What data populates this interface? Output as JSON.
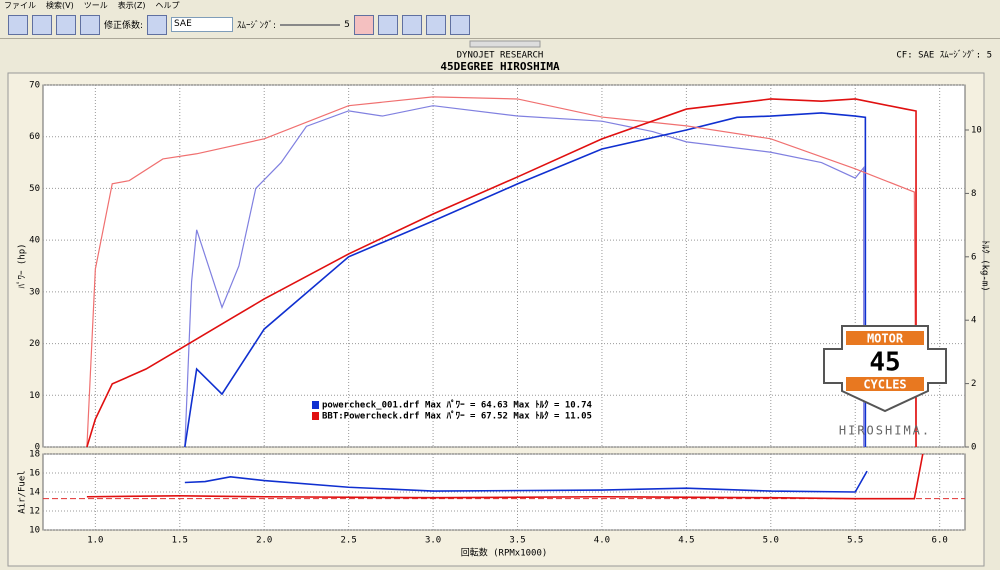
{
  "menu": [
    "ファイル",
    "検索(V)",
    "ツール",
    "表示(Z)",
    "ヘルプ"
  ],
  "toolbar": {
    "label": "修正係数:",
    "select": "SAE",
    "smoothing_label": "ｽﾑｰｼﾞﾝｸﾞ:",
    "smoothing_value": 5
  },
  "header": {
    "top": "DYNOJET  RESEARCH",
    "title": "45DEGREE HIROSHIMA",
    "cf": "CF: SAE  ｽﾑｰｼﾞﾝｸﾞ: 5"
  },
  "logo": {
    "top": "MOTOR",
    "number": "45",
    "bottom": "CYCLES",
    "city": "HIROSHIMA."
  },
  "chart_data": [
    {
      "type": "line",
      "ylabel": "ﾊﾟﾜｰ (hp)",
      "y2label": "ﾄﾙｸ (kg-m)",
      "grid": true,
      "xlim": [
        0.69,
        6.15
      ],
      "xticks": [
        {
          "value": 1,
          "label": "1.0"
        },
        1.5,
        {
          "value": 2,
          "label": "2.0"
        },
        2.5,
        {
          "value": 3,
          "label": "3.0"
        },
        3.5,
        {
          "value": 4,
          "label": "4.0"
        },
        4.5,
        {
          "value": 5,
          "label": "5.0"
        },
        5.5,
        {
          "value": 6,
          "label": "6.0"
        }
      ],
      "ylim": [
        0,
        70
      ],
      "yticks": [
        0,
        10,
        20,
        30,
        40,
        50,
        60,
        70
      ],
      "y2lim": [
        0,
        11.42
      ],
      "y2ticks": [
        0,
        2,
        4,
        6,
        8,
        10
      ],
      "legend": [
        {
          "label": "powercheck_001.drf Max ﾊﾟﾜｰ = 64.63  Max ﾄﾙｸ = 10.74",
          "color": "#1030d0"
        },
        {
          "label": "BBT:Powercheck.drf Max ﾊﾟﾜｰ = 67.52  Max ﾄﾙｸ = 11.05",
          "color": "#e01010"
        }
      ],
      "series": [
        {
          "color": "#8080e0",
          "width": 1.2,
          "x": [
            1.53,
            1.57,
            1.6,
            1.65,
            1.75,
            1.85,
            1.95,
            2.1,
            2.25,
            2.5,
            2.7,
            3.0,
            3.5,
            4.0,
            4.3,
            4.5,
            5.0,
            5.3,
            5.5,
            5.55,
            5.55
          ],
          "values": [
            0,
            32,
            42,
            37,
            27,
            35,
            50,
            55,
            62,
            65,
            64,
            66,
            64,
            63,
            61,
            59,
            57,
            55,
            52,
            54,
            0
          ]
        },
        {
          "color": "#1030d0",
          "width": 1.6,
          "axis": "y2",
          "x": [
            1.53,
            1.6,
            1.75,
            2.0,
            2.5,
            3.0,
            3.5,
            4.0,
            4.5,
            4.8,
            5.0,
            5.3,
            5.5,
            5.56,
            5.56
          ],
          "values": [
            0,
            2.46,
            1.67,
            3.72,
            6.0,
            7.13,
            8.3,
            9.4,
            10.0,
            10.4,
            10.44,
            10.54,
            10.44,
            10.4,
            0
          ]
        },
        {
          "color": "#f07070",
          "width": 1.2,
          "x": [
            0.95,
            1.0,
            1.1,
            1.2,
            1.4,
            1.6,
            2.0,
            2.5,
            3.0,
            3.5,
            4.0,
            4.5,
            5.0,
            5.5,
            5.85,
            5.86
          ],
          "values": [
            0,
            34.4,
            50.9,
            51.5,
            55.7,
            56.7,
            59.6,
            66,
            67.7,
            67.3,
            63.8,
            62.1,
            59.6,
            53.8,
            49.3,
            0
          ]
        },
        {
          "color": "#e01010",
          "width": 1.6,
          "axis": "y2",
          "x": [
            0.95,
            1.0,
            1.1,
            1.3,
            1.5,
            1.8,
            2.0,
            2.5,
            3.0,
            3.5,
            4.0,
            4.5,
            5.0,
            5.3,
            5.5,
            5.8,
            5.86,
            5.86
          ],
          "values": [
            0,
            0.88,
            1.99,
            2.46,
            3.09,
            4.04,
            4.67,
            6.09,
            7.35,
            8.52,
            9.72,
            10.66,
            10.98,
            10.91,
            10.98,
            10.66,
            10.6,
            0
          ]
        }
      ]
    },
    {
      "type": "line",
      "ylabel": "Air/Fuel",
      "xlabel": "回転数 (RPMx1000)",
      "grid": true,
      "xlim": [
        0.69,
        6.15
      ],
      "xticks": [
        {
          "value": 1,
          "label": "1.0"
        },
        1.5,
        {
          "value": 2,
          "label": "2.0"
        },
        2.5,
        {
          "value": 3,
          "label": "3.0"
        },
        3.5,
        {
          "value": 4,
          "label": "4.0"
        },
        4.5,
        {
          "value": 5,
          "label": "5.0"
        },
        5.5,
        {
          "value": 6,
          "label": "6.0"
        }
      ],
      "ylim": [
        10,
        18
      ],
      "yticks": [
        10,
        12,
        14,
        16,
        18
      ],
      "reference": {
        "value": 13.3,
        "color": "#e03030"
      },
      "series": [
        {
          "color": "#1030d0",
          "width": 1.6,
          "x": [
            1.53,
            1.65,
            1.8,
            2.0,
            2.5,
            3.0,
            4.0,
            4.5,
            5.0,
            5.5,
            5.57
          ],
          "values": [
            15,
            15.1,
            15.6,
            15.2,
            14.5,
            14.1,
            14.2,
            14.4,
            14.1,
            14.0,
            16.2
          ]
        },
        {
          "color": "#e01010",
          "width": 1.6,
          "x": [
            0.95,
            1.5,
            2.0,
            3.0,
            4.0,
            5.0,
            5.5,
            5.85,
            5.9
          ],
          "values": [
            13.5,
            13.6,
            13.5,
            13.4,
            13.5,
            13.4,
            13.3,
            13.3,
            18
          ]
        }
      ]
    }
  ]
}
